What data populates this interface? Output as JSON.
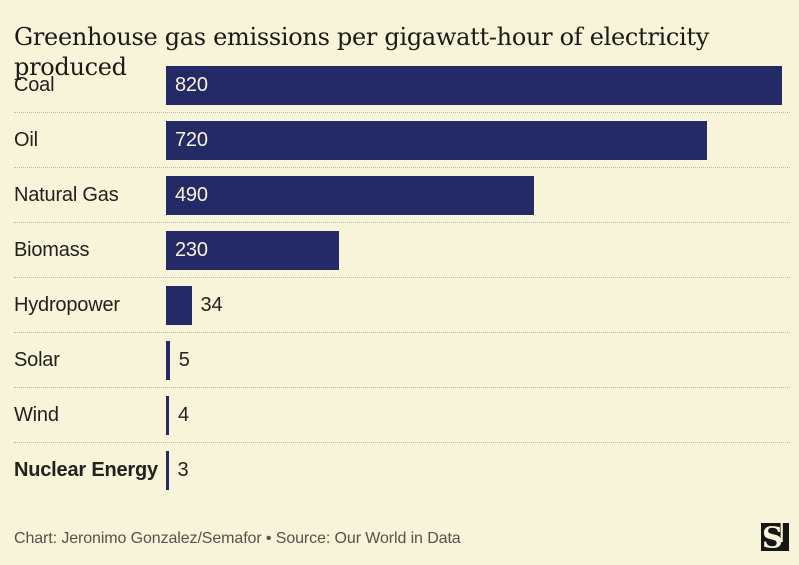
{
  "chart_data": {
    "type": "bar",
    "orientation": "horizontal",
    "title": "Greenhouse gas emissions per gigawatt-hour of electricity produced",
    "categories": [
      "Coal",
      "Oil",
      "Natural Gas",
      "Biomass",
      "Hydropower",
      "Solar",
      "Wind",
      "Nuclear Energy"
    ],
    "values": [
      820,
      720,
      490,
      230,
      34,
      5,
      4,
      3
    ],
    "value_labels": [
      "820",
      "720",
      "490",
      "230",
      "34",
      "5",
      "4",
      "3"
    ],
    "emphasized_category": "Nuclear Energy",
    "xlim": [
      0,
      820
    ],
    "grid": false,
    "legend": "none",
    "bar_color": "#242a66",
    "value_label_inside_color": "#f8f4da",
    "value_label_outside_color": "#23231f"
  },
  "footer": {
    "credit": "Chart: Jeronimo Gonzalez/Semafor • Source: Our World in Data",
    "logo": "semafor-logo"
  },
  "colors": {
    "background": "#f8f4d9",
    "title_text": "#1a1a17",
    "label_text": "#21211e",
    "separator": "#bdb99c",
    "credit_text": "#55534a",
    "logo_black": "#161616",
    "logo_cream": "#f8f4d9"
  }
}
